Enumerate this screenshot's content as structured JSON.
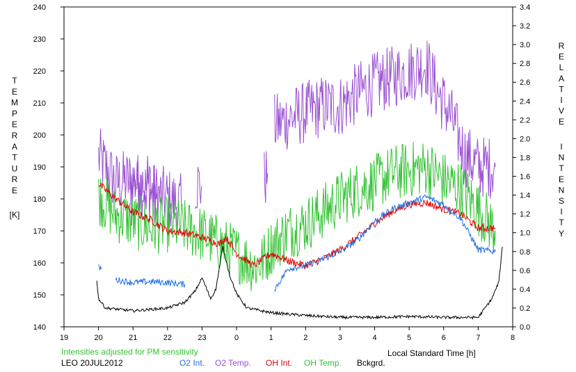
{
  "chart_data": {
    "type": "line",
    "title": "",
    "station_date": "LEO 20JUL2012",
    "note": "Intensities adjusted for PM sensitivity",
    "xlabel": "Local Standard Time [h]",
    "ylabel_left_letters": [
      "T",
      "E",
      "M",
      "P",
      "E",
      "R",
      "A",
      "T",
      "U",
      "R",
      "E"
    ],
    "ylabel_left_unit": "[K]",
    "ylabel_right_word1": [
      "R",
      "E",
      "L",
      "A",
      "T",
      "I",
      "V",
      "E"
    ],
    "ylabel_right_word2": [
      "I",
      "N",
      "T",
      "E",
      "N",
      "S",
      "I",
      "T",
      "Y"
    ],
    "x_ticks": [
      "19",
      "20",
      "21",
      "22",
      "23",
      "0",
      "1",
      "2",
      "3",
      "4",
      "5",
      "6",
      "7",
      "8"
    ],
    "xlim": [
      19,
      32
    ],
    "ylim_left": [
      140,
      240
    ],
    "ylim_right": [
      0.0,
      3.4
    ],
    "y_ticks_left": [
      "140",
      "150",
      "160",
      "170",
      "180",
      "190",
      "200",
      "210",
      "220",
      "230",
      "240"
    ],
    "y_ticks_right": [
      "0.0",
      "0.2",
      "0.4",
      "0.6",
      "0.8",
      "1.0",
      "1.2",
      "1.4",
      "1.6",
      "1.8",
      "2.0",
      "2.2",
      "2.4",
      "2.6",
      "2.8",
      "3.0",
      "3.2",
      "3.4"
    ],
    "legend": [
      {
        "label": "O2 Int.",
        "color": "#1f6fe0"
      },
      {
        "label": "O2 Temp.",
        "color": "#9a4fd1"
      },
      {
        "label": "OH Int.",
        "color": "#e00000"
      },
      {
        "label": "OH Temp.",
        "color": "#33c233"
      },
      {
        "label": "Bckgrd.",
        "color": "#000000"
      }
    ],
    "series": [
      {
        "name": "O2 Temp.",
        "axis": "left",
        "color": "#9a4fd1",
        "noise": 10,
        "segments": [
          [
            [
              20.0,
              193
            ],
            [
              20.5,
              185
            ],
            [
              21.0,
              186
            ],
            [
              21.5,
              182
            ],
            [
              22.0,
              180
            ],
            [
              22.4,
              178
            ]
          ],
          [
            [
              20.9,
              181
            ],
            [
              21.3,
              185
            ],
            [
              21.7,
              182
            ]
          ],
          [
            [
              22.8,
              185
            ],
            [
              23.0,
              184
            ]
          ],
          [
            [
              24.8,
              186
            ],
            [
              24.9,
              188
            ]
          ],
          [
            [
              25.1,
              203
            ],
            [
              25.5,
              205
            ],
            [
              26.0,
              207
            ],
            [
              26.5,
              209
            ],
            [
              27.0,
              209
            ],
            [
              27.5,
              213
            ],
            [
              28.0,
              216
            ],
            [
              28.5,
              218
            ],
            [
              29.0,
              220
            ],
            [
              29.5,
              222
            ],
            [
              29.8,
              214
            ],
            [
              30.2,
              206
            ],
            [
              30.6,
              194
            ],
            [
              31.0,
              190
            ],
            [
              31.4,
              190
            ],
            [
              31.5,
              190
            ]
          ]
        ]
      },
      {
        "name": "OH Temp.",
        "axis": "left",
        "color": "#33c233",
        "noise": 9,
        "segments": [
          [
            [
              20.0,
              181
            ],
            [
              20.5,
              175
            ],
            [
              21.0,
              173
            ],
            [
              21.5,
              171
            ],
            [
              22.0,
              172
            ],
            [
              22.5,
              171
            ],
            [
              23.0,
              169
            ],
            [
              23.5,
              166
            ],
            [
              24.0,
              163
            ],
            [
              24.5,
              159
            ],
            [
              24.8,
              161
            ],
            [
              25.0,
              165
            ],
            [
              25.5,
              170
            ],
            [
              26.0,
              172
            ],
            [
              26.5,
              176
            ],
            [
              27.0,
              180
            ],
            [
              27.5,
              183
            ],
            [
              28.0,
              185
            ],
            [
              28.5,
              188
            ],
            [
              29.0,
              189
            ],
            [
              29.5,
              190
            ],
            [
              30.0,
              186
            ],
            [
              30.5,
              183
            ],
            [
              31.0,
              177
            ],
            [
              31.5,
              170
            ]
          ]
        ]
      },
      {
        "name": "OH Int.",
        "axis": "right",
        "color": "#e00000",
        "noise": 0.04,
        "segments": [
          [
            [
              20.0,
              1.52
            ],
            [
              20.5,
              1.36
            ],
            [
              21.0,
              1.22
            ],
            [
              21.5,
              1.14
            ],
            [
              22.0,
              1.02
            ],
            [
              22.5,
              1.0
            ],
            [
              23.0,
              0.95
            ],
            [
              23.5,
              0.88
            ],
            [
              23.7,
              0.95
            ],
            [
              24.0,
              0.78
            ],
            [
              24.5,
              0.65
            ],
            [
              25.0,
              0.78
            ],
            [
              25.5,
              0.7
            ],
            [
              26.0,
              0.65
            ],
            [
              26.5,
              0.72
            ],
            [
              27.0,
              0.82
            ],
            [
              27.5,
              0.95
            ],
            [
              28.0,
              1.1
            ],
            [
              28.5,
              1.22
            ],
            [
              29.0,
              1.3
            ],
            [
              29.5,
              1.32
            ],
            [
              30.0,
              1.25
            ],
            [
              30.5,
              1.2
            ],
            [
              31.0,
              1.05
            ],
            [
              31.5,
              1.05
            ]
          ]
        ]
      },
      {
        "name": "O2 Int.",
        "axis": "right",
        "color": "#1f6fe0",
        "noise": 0.035,
        "segments": [
          [
            [
              20.0,
              0.63
            ],
            [
              20.1,
              0.62
            ]
          ],
          [
            [
              20.5,
              0.5
            ],
            [
              21.0,
              0.47
            ],
            [
              21.5,
              0.48
            ],
            [
              22.0,
              0.47
            ],
            [
              22.5,
              0.45
            ]
          ],
          [
            [
              25.1,
              0.4
            ],
            [
              25.5,
              0.62
            ],
            [
              26.0,
              0.65
            ],
            [
              26.5,
              0.72
            ],
            [
              27.0,
              0.8
            ],
            [
              27.5,
              0.92
            ],
            [
              28.0,
              1.12
            ],
            [
              28.5,
              1.25
            ],
            [
              29.0,
              1.32
            ],
            [
              29.5,
              1.38
            ],
            [
              30.0,
              1.3
            ],
            [
              30.5,
              1.15
            ],
            [
              31.0,
              0.82
            ],
            [
              31.5,
              0.8
            ]
          ]
        ]
      },
      {
        "name": "Bckgrd.",
        "axis": "right",
        "color": "#000000",
        "noise": 0.015,
        "segments": [
          [
            [
              19.95,
              0.5
            ],
            [
              20.0,
              0.3
            ],
            [
              20.2,
              0.2
            ],
            [
              21.0,
              0.17
            ],
            [
              22.0,
              0.2
            ],
            [
              22.5,
              0.26
            ],
            [
              22.8,
              0.38
            ],
            [
              23.0,
              0.52
            ],
            [
              23.25,
              0.3
            ],
            [
              23.4,
              0.4
            ],
            [
              23.6,
              0.85
            ],
            [
              23.8,
              0.55
            ],
            [
              24.0,
              0.35
            ],
            [
              24.3,
              0.2
            ],
            [
              25.0,
              0.15
            ],
            [
              26.0,
              0.12
            ],
            [
              27.0,
              0.1
            ],
            [
              28.0,
              0.1
            ],
            [
              29.0,
              0.11
            ],
            [
              30.0,
              0.1
            ],
            [
              31.0,
              0.1
            ],
            [
              31.2,
              0.2
            ],
            [
              31.4,
              0.3
            ],
            [
              31.6,
              0.48
            ],
            [
              31.7,
              0.85
            ]
          ]
        ]
      }
    ]
  }
}
